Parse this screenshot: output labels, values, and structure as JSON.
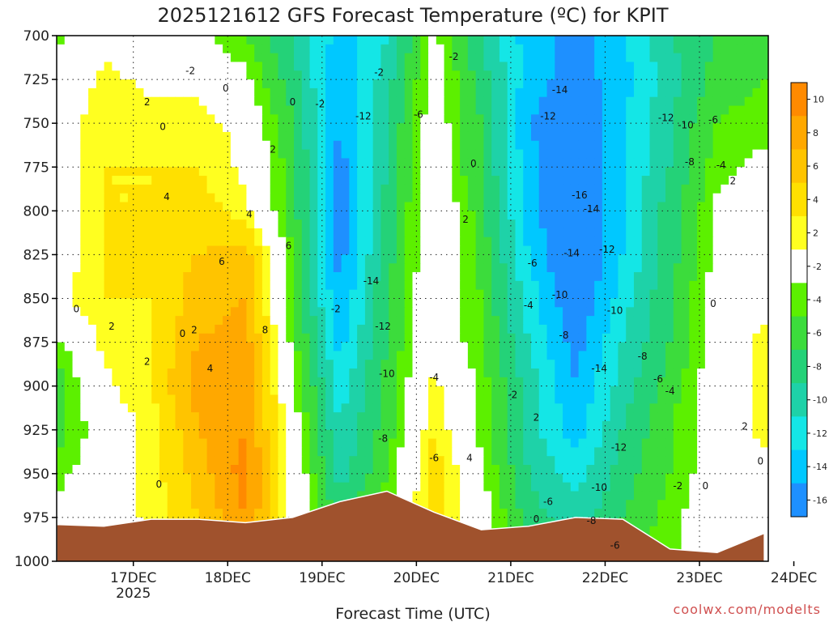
{
  "chart_data": {
    "type": "heatmap",
    "title": "2025121612 GFS Forecast Temperature (ºC) for KPIT",
    "xlabel": "Forecast Time (UTC)",
    "credit": "coolwx.com/modelts",
    "x_ticks": [
      {
        "label": "17DEC",
        "sub": "2025",
        "t": 19.5
      },
      {
        "label": "18DEC",
        "sub": "",
        "t": 43.5
      },
      {
        "label": "19DEC",
        "sub": "",
        "t": 67.5
      },
      {
        "label": "20DEC",
        "sub": "",
        "t": 91.5
      },
      {
        "label": "21DEC",
        "sub": "",
        "t": 115.5
      },
      {
        "label": "22DEC",
        "sub": "",
        "t": 139.5
      },
      {
        "label": "23DEC",
        "sub": "",
        "t": 163.5
      },
      {
        "label": "24DEC",
        "sub": "",
        "t": 187.5
      }
    ],
    "xlim": [
      0,
      181
    ],
    "y_ticks": [
      "700",
      "725",
      "750",
      "775",
      "800",
      "825",
      "850",
      "875",
      "900",
      "925",
      "950",
      "975",
      "1000"
    ],
    "ylim": [
      1000,
      700
    ],
    "colorbar": {
      "levels": [
        "10",
        "8",
        "6",
        "4",
        "2",
        "-2",
        "-4",
        "-6",
        "-8",
        "-10",
        "-12",
        "-14",
        "-16"
      ],
      "colors": [
        "#ff8a00",
        "#ffa800",
        "#ffc400",
        "#ffe000",
        "#ffff20",
        "#ffffff",
        "#5cf000",
        "#3cdc3c",
        "#24d278",
        "#1ed2a8",
        "#14e6e6",
        "#00c8ff",
        "#1e90ff"
      ]
    },
    "hours": [
      0,
      12,
      24,
      36,
      48,
      60,
      72,
      84,
      96,
      108,
      120,
      132,
      144,
      156,
      168,
      180
    ],
    "pressures": [
      700,
      725,
      750,
      775,
      800,
      825,
      850,
      875,
      900,
      925,
      950,
      975,
      1000
    ],
    "temperatures": [
      [
        -2,
        1,
        0,
        -1,
        -3,
        -7,
        -12,
        -9,
        -1,
        -7,
        -12,
        -14,
        -11,
        -7,
        -5,
        -4
      ],
      [
        -1,
        2,
        1,
        1,
        -1,
        -6,
        -13,
        -8,
        0,
        -6,
        -12,
        -14,
        -12,
        -8,
        -4,
        -3
      ],
      [
        0,
        3,
        2,
        2,
        1,
        -5,
        -13,
        -7,
        0,
        -5,
        -13,
        -15,
        -11,
        -7,
        -3,
        -2
      ],
      [
        0,
        3,
        3,
        3,
        1,
        -4,
        -14,
        -7,
        0,
        -5,
        -12,
        -16,
        -11,
        -7,
        -2,
        -1
      ],
      [
        0,
        3,
        3,
        4,
        2,
        -4,
        -14,
        -6,
        1,
        -4,
        -12,
        -16,
        -11,
        -6,
        -1,
        0
      ],
      [
        0,
        3,
        4,
        5,
        6,
        -3,
        -14,
        -6,
        1,
        -4,
        -11,
        -16,
        -11,
        -6,
        -1,
        1
      ],
      [
        1,
        3,
        3,
        6,
        7,
        -3,
        -13,
        -5,
        1,
        -3,
        -10,
        -15,
        -10,
        -5,
        0,
        1
      ],
      [
        -2,
        2,
        3,
        7,
        8,
        -2,
        -12,
        -5,
        1,
        -3,
        -9,
        -14,
        -9,
        -5,
        0,
        2
      ],
      [
        -4,
        1,
        3,
        8,
        9,
        -1,
        -10,
        -4,
        2,
        -2,
        -8,
        -13,
        -8,
        -4,
        0,
        2
      ],
      [
        -4,
        0,
        2,
        7,
        9,
        0,
        -9,
        -4,
        3,
        -2,
        -8,
        -12,
        -7,
        -3,
        0,
        2
      ],
      [
        -2,
        0,
        2,
        6,
        10,
        1,
        -8,
        -3,
        4,
        -1,
        -7,
        -10,
        -6,
        -3,
        0,
        1
      ],
      [
        -1,
        0,
        2,
        5,
        9,
        1,
        -6,
        -2,
        4,
        0,
        -6,
        -8,
        -5,
        -2,
        0,
        1
      ],
      [
        0,
        0,
        1,
        3,
        6,
        1,
        -4,
        -1,
        2,
        0,
        -5,
        -6,
        -4,
        -2,
        0,
        1
      ]
    ],
    "terrain_pressure": [
      979,
      980,
      976,
      976,
      978,
      975,
      966,
      960,
      972,
      982,
      980,
      975,
      976,
      993,
      995,
      984
    ],
    "contour_labels": [
      {
        "v": "-2",
        "t": 34,
        "p": 720
      },
      {
        "v": "0",
        "t": 43,
        "p": 730
      },
      {
        "v": "-2",
        "t": 82,
        "p": 721
      },
      {
        "v": "0",
        "t": 60,
        "p": 738
      },
      {
        "v": "2",
        "t": 23,
        "p": 738
      },
      {
        "v": "0",
        "t": 27,
        "p": 752
      },
      {
        "v": "-2",
        "t": 67,
        "p": 739
      },
      {
        "v": "-12",
        "t": 78,
        "p": 746
      },
      {
        "v": "-6",
        "t": 92,
        "p": 745
      },
      {
        "v": "-2",
        "t": 101,
        "p": 712
      },
      {
        "v": "-14",
        "t": 128,
        "p": 731
      },
      {
        "v": "-12",
        "t": 125,
        "p": 746
      },
      {
        "v": "-12",
        "t": 155,
        "p": 747
      },
      {
        "v": "-10",
        "t": 160,
        "p": 751
      },
      {
        "v": "-6",
        "t": 167,
        "p": 748
      },
      {
        "v": "2",
        "t": 55,
        "p": 765
      },
      {
        "v": "0",
        "t": 106,
        "p": 773
      },
      {
        "v": "-8",
        "t": 161,
        "p": 772
      },
      {
        "v": "-4",
        "t": 169,
        "p": 774
      },
      {
        "v": "2",
        "t": 172,
        "p": 783
      },
      {
        "v": "4",
        "t": 28,
        "p": 792
      },
      {
        "v": "4",
        "t": 49,
        "p": 802
      },
      {
        "v": "-16",
        "t": 133,
        "p": 791
      },
      {
        "v": "-14",
        "t": 136,
        "p": 799
      },
      {
        "v": "2",
        "t": 104,
        "p": 805
      },
      {
        "v": "6",
        "t": 59,
        "p": 820
      },
      {
        "v": "-12",
        "t": 140,
        "p": 822
      },
      {
        "v": "-14",
        "t": 131,
        "p": 824
      },
      {
        "v": "6",
        "t": 42,
        "p": 829
      },
      {
        "v": "-6",
        "t": 121,
        "p": 830
      },
      {
        "v": "-14",
        "t": 80,
        "p": 840
      },
      {
        "v": "0",
        "t": 5,
        "p": 856
      },
      {
        "v": "-2",
        "t": 71,
        "p": 856
      },
      {
        "v": "-4",
        "t": 120,
        "p": 854
      },
      {
        "v": "-10",
        "t": 128,
        "p": 848
      },
      {
        "v": "-10",
        "t": 142,
        "p": 857
      },
      {
        "v": "0",
        "t": 167,
        "p": 853
      },
      {
        "v": "2",
        "t": 14,
        "p": 866
      },
      {
        "v": "0",
        "t": 32,
        "p": 870
      },
      {
        "v": "2",
        "t": 35,
        "p": 868
      },
      {
        "v": "8",
        "t": 53,
        "p": 868
      },
      {
        "v": "-12",
        "t": 83,
        "p": 866
      },
      {
        "v": "-8",
        "t": 129,
        "p": 871
      },
      {
        "v": "-8",
        "t": 149,
        "p": 883
      },
      {
        "v": "2",
        "t": 23,
        "p": 886
      },
      {
        "v": "4",
        "t": 39,
        "p": 890
      },
      {
        "v": "-10",
        "t": 84,
        "p": 893
      },
      {
        "v": "-4",
        "t": 96,
        "p": 895
      },
      {
        "v": "-14",
        "t": 138,
        "p": 890
      },
      {
        "v": "-6",
        "t": 153,
        "p": 896
      },
      {
        "v": "-2",
        "t": 116,
        "p": 905
      },
      {
        "v": "-4",
        "t": 156,
        "p": 903
      },
      {
        "v": "2",
        "t": 122,
        "p": 918
      },
      {
        "v": "2",
        "t": 175,
        "p": 923
      },
      {
        "v": "-8",
        "t": 83,
        "p": 930
      },
      {
        "v": "-12",
        "t": 143,
        "p": 935
      },
      {
        "v": "-6",
        "t": 96,
        "p": 941
      },
      {
        "v": "4",
        "t": 105,
        "p": 941
      },
      {
        "v": "0",
        "t": 179,
        "p": 943
      },
      {
        "v": "0",
        "t": 26,
        "p": 956
      },
      {
        "v": "-10",
        "t": 138,
        "p": 958
      },
      {
        "v": "-2",
        "t": 158,
        "p": 957
      },
      {
        "v": "0",
        "t": 165,
        "p": 957
      },
      {
        "v": "-6",
        "t": 125,
        "p": 966
      },
      {
        "v": "0",
        "t": 122,
        "p": 976
      },
      {
        "v": "-8",
        "t": 136,
        "p": 977
      },
      {
        "v": "-6",
        "t": 142,
        "p": 991
      }
    ]
  }
}
